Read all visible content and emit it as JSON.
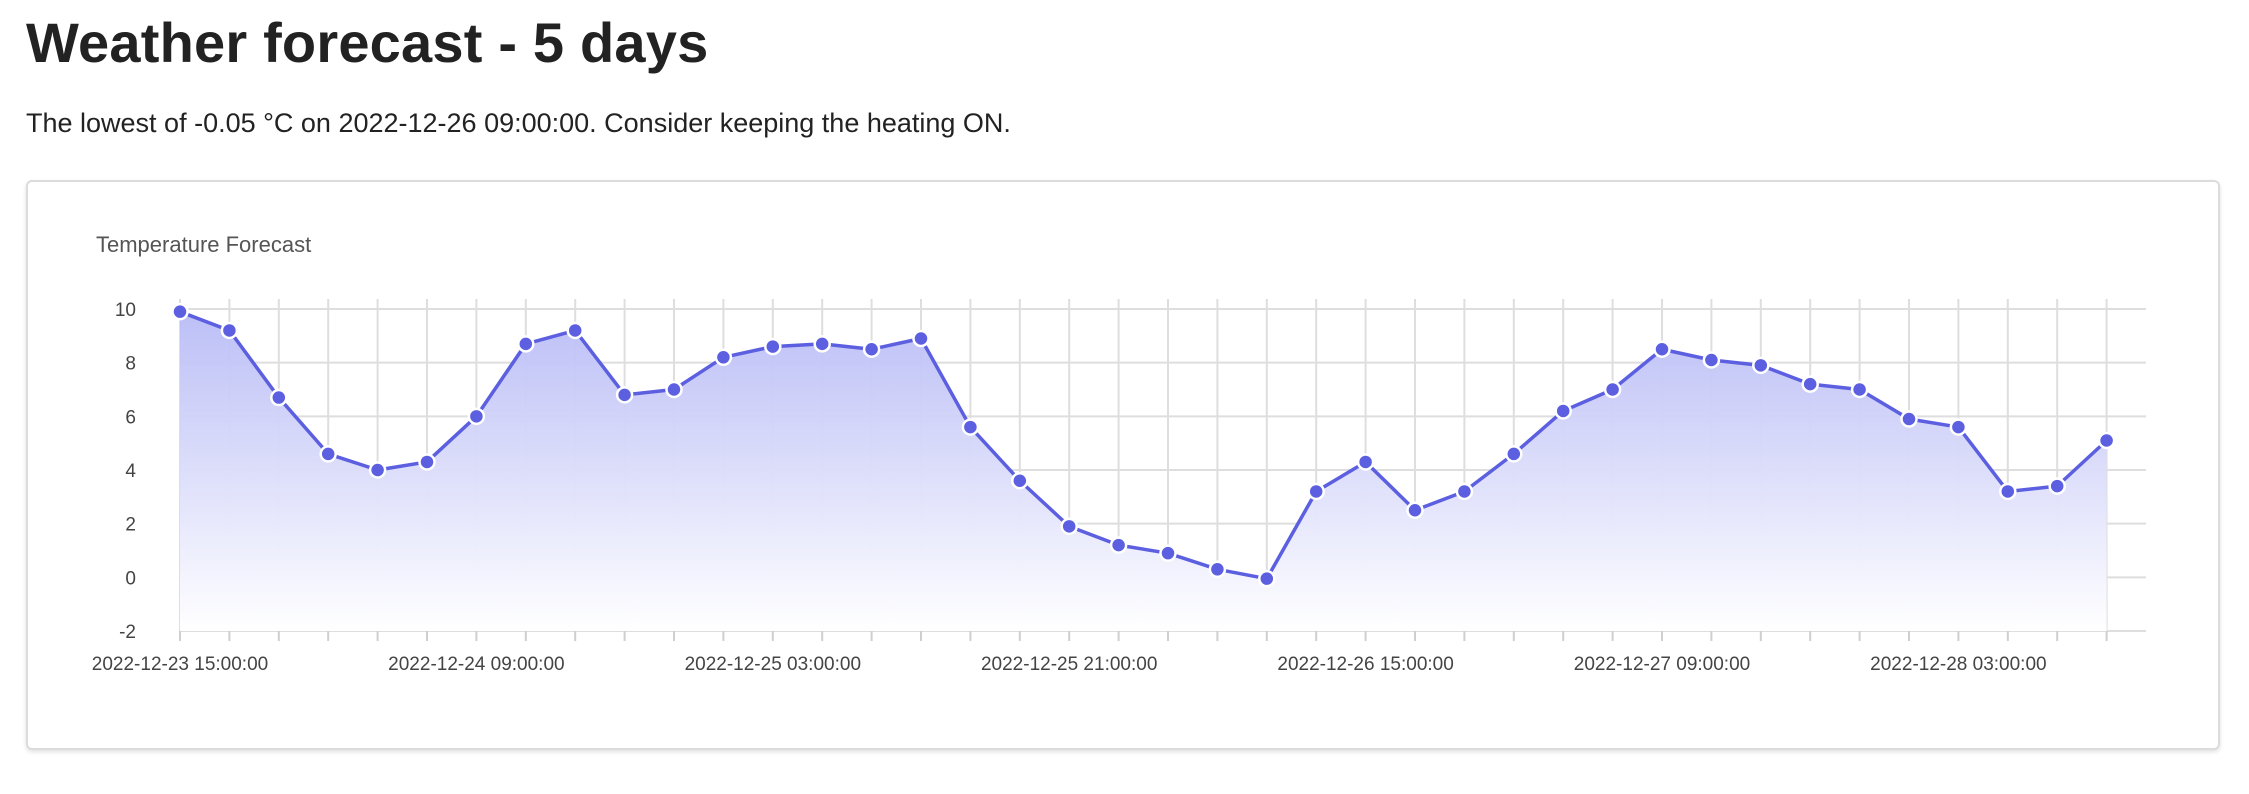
{
  "page": {
    "heading": "Weather forecast - 5 days",
    "summary": "The lowest of -0.05 °C on 2022-12-26 09:00:00. Consider keeping the heating ON."
  },
  "colors": {
    "line": "#5b5fe0",
    "fill_top": "#b9bcf6",
    "fill_bottom": "#ffffff",
    "grid": "#dedede"
  },
  "chart_data": {
    "type": "area",
    "title": "Temperature Forecast",
    "x": [
      "2022-12-23 15:00:00",
      "2022-12-23 18:00:00",
      "2022-12-23 21:00:00",
      "2022-12-24 00:00:00",
      "2022-12-24 03:00:00",
      "2022-12-24 06:00:00",
      "2022-12-24 09:00:00",
      "2022-12-24 12:00:00",
      "2022-12-24 15:00:00",
      "2022-12-24 18:00:00",
      "2022-12-24 21:00:00",
      "2022-12-25 00:00:00",
      "2022-12-25 03:00:00",
      "2022-12-25 06:00:00",
      "2022-12-25 09:00:00",
      "2022-12-25 12:00:00",
      "2022-12-25 15:00:00",
      "2022-12-25 18:00:00",
      "2022-12-25 21:00:00",
      "2022-12-26 00:00:00",
      "2022-12-26 03:00:00",
      "2022-12-26 06:00:00",
      "2022-12-26 09:00:00",
      "2022-12-26 12:00:00",
      "2022-12-26 15:00:00",
      "2022-12-26 18:00:00",
      "2022-12-26 21:00:00",
      "2022-12-27 00:00:00",
      "2022-12-27 03:00:00",
      "2022-12-27 06:00:00",
      "2022-12-27 09:00:00",
      "2022-12-27 12:00:00",
      "2022-12-27 15:00:00",
      "2022-12-27 18:00:00",
      "2022-12-27 21:00:00",
      "2022-12-28 00:00:00",
      "2022-12-28 03:00:00",
      "2022-12-28 06:00:00",
      "2022-12-28 09:00:00",
      "2022-12-28 12:00:00"
    ],
    "xtick_labels": [
      "2022-12-23 15:00:00",
      "2022-12-24 09:00:00",
      "2022-12-25 03:00:00",
      "2022-12-25 21:00:00",
      "2022-12-26 15:00:00",
      "2022-12-27 09:00:00",
      "2022-12-28 03:00:00"
    ],
    "series": [
      {
        "values": [
          9.9,
          9.2,
          6.7,
          4.6,
          4.0,
          4.3,
          6.0,
          8.7,
          9.2,
          6.8,
          7.0,
          8.2,
          8.6,
          8.7,
          8.5,
          8.9,
          5.6,
          3.6,
          1.9,
          1.2,
          0.9,
          0.3,
          -0.05,
          3.2,
          4.3,
          2.5,
          3.2,
          4.6,
          6.2,
          7.0,
          8.5,
          8.1,
          7.9,
          7.2,
          7.0,
          5.9,
          5.6,
          3.2,
          3.4,
          5.1
        ]
      }
    ],
    "ylim": [
      -2,
      10
    ],
    "yticks": [
      -2,
      0,
      2,
      4,
      6,
      8,
      10
    ],
    "grid": true,
    "legend": "none"
  }
}
